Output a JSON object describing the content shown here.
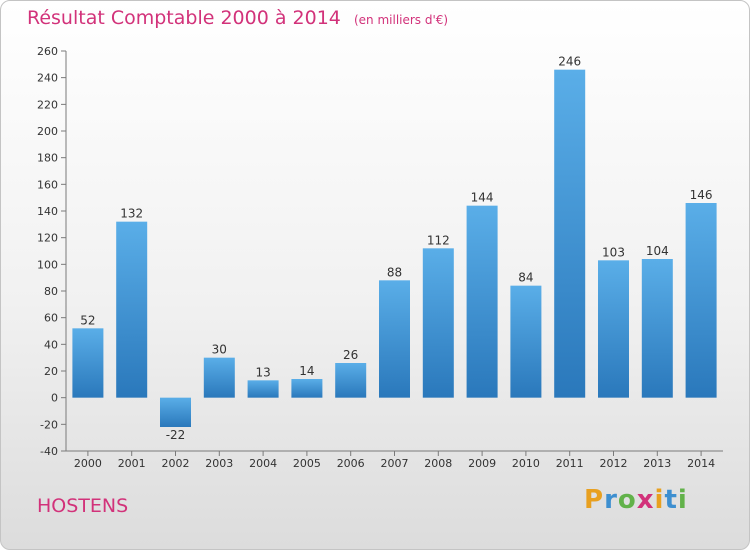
{
  "chart_data": {
    "type": "bar",
    "title": "Résultat Comptable 2000 à 2014",
    "subtitle": "(en milliers d'€)",
    "categories": [
      "2000",
      "2001",
      "2002",
      "2003",
      "2004",
      "2005",
      "2006",
      "2007",
      "2008",
      "2009",
      "2010",
      "2011",
      "2012",
      "2013",
      "2014"
    ],
    "values": [
      52,
      132,
      -22,
      30,
      13,
      14,
      26,
      88,
      112,
      144,
      84,
      246,
      103,
      104,
      146
    ],
    "ylim": [
      -40,
      260
    ],
    "yticks": [
      -40,
      -20,
      0,
      20,
      40,
      60,
      80,
      100,
      120,
      140,
      160,
      180,
      200,
      220,
      240,
      260
    ],
    "grid": false,
    "bar_color_light": "#5aaee8",
    "bar_color_dark": "#2a78bb"
  },
  "commune": "HOSTENS",
  "logo": {
    "text": "Proxiti",
    "letters": [
      {
        "ch": "P",
        "color": "#e8a020"
      },
      {
        "ch": "r",
        "color": "#3d8fd0"
      },
      {
        "ch": "o",
        "color": "#62b24a"
      },
      {
        "ch": "x",
        "color": "#d2327a"
      },
      {
        "ch": "i",
        "color": "#e8a020"
      },
      {
        "ch": "t",
        "color": "#3d8fd0"
      },
      {
        "ch": "i",
        "color": "#62b24a"
      }
    ]
  }
}
